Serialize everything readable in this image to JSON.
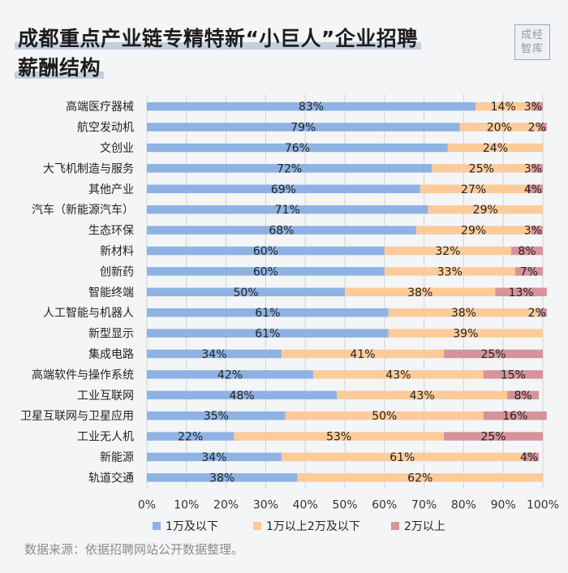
{
  "title_lines": [
    "成都重点产业链专精特新“小巨人”企业招聘",
    "薪酬结构"
  ],
  "logo_lines": [
    "成经",
    "智库"
  ],
  "source": "数据来源：依据招聘网站公开数据整理。",
  "colors": {
    "series1": "#8eb3e3",
    "series2": "#fbcb9a",
    "series3": "#d6949a",
    "grid": "#cfd3d8"
  },
  "chart_data": {
    "type": "bar",
    "orientation": "horizontal",
    "stacked": true,
    "title": "",
    "xlabel": "",
    "ylabel": "",
    "xlim": [
      0,
      100
    ],
    "x_ticks": [
      "0%",
      "10%",
      "20%",
      "30%",
      "40%",
      "50%",
      "60%",
      "70%",
      "80%",
      "90%",
      "100%"
    ],
    "grid": true,
    "legend_position": "bottom",
    "categories": [
      "高端医疗器械",
      "航空发动机",
      "文创业",
      "大飞机制造与服务",
      "其他产业",
      "汽车（新能源汽车）",
      "生态环保",
      "新材料",
      "创新药",
      "智能终端",
      "人工智能与机器人",
      "新型显示",
      "集成电路",
      "高端软件与操作系统",
      "工业互联网",
      "卫星互联网与卫星应用",
      "工业无人机",
      "新能源",
      "轨道交通"
    ],
    "series": [
      {
        "name": "1万及以下",
        "color": "#8eb3e3",
        "values": [
          83,
          79,
          76,
          72,
          69,
          71,
          68,
          60,
          60,
          50,
          61,
          61,
          34,
          42,
          48,
          35,
          22,
          34,
          38
        ]
      },
      {
        "name": "1万以上2万及以下",
        "color": "#fbcb9a",
        "values": [
          14,
          20,
          24,
          25,
          27,
          29,
          29,
          32,
          33,
          38,
          38,
          39,
          41,
          43,
          43,
          50,
          53,
          61,
          62
        ]
      },
      {
        "name": "2万以上",
        "color": "#d6949a",
        "values": [
          3,
          2,
          0,
          3,
          4,
          0,
          3,
          8,
          7,
          13,
          2,
          0,
          25,
          15,
          8,
          16,
          25,
          4,
          0
        ]
      }
    ]
  }
}
